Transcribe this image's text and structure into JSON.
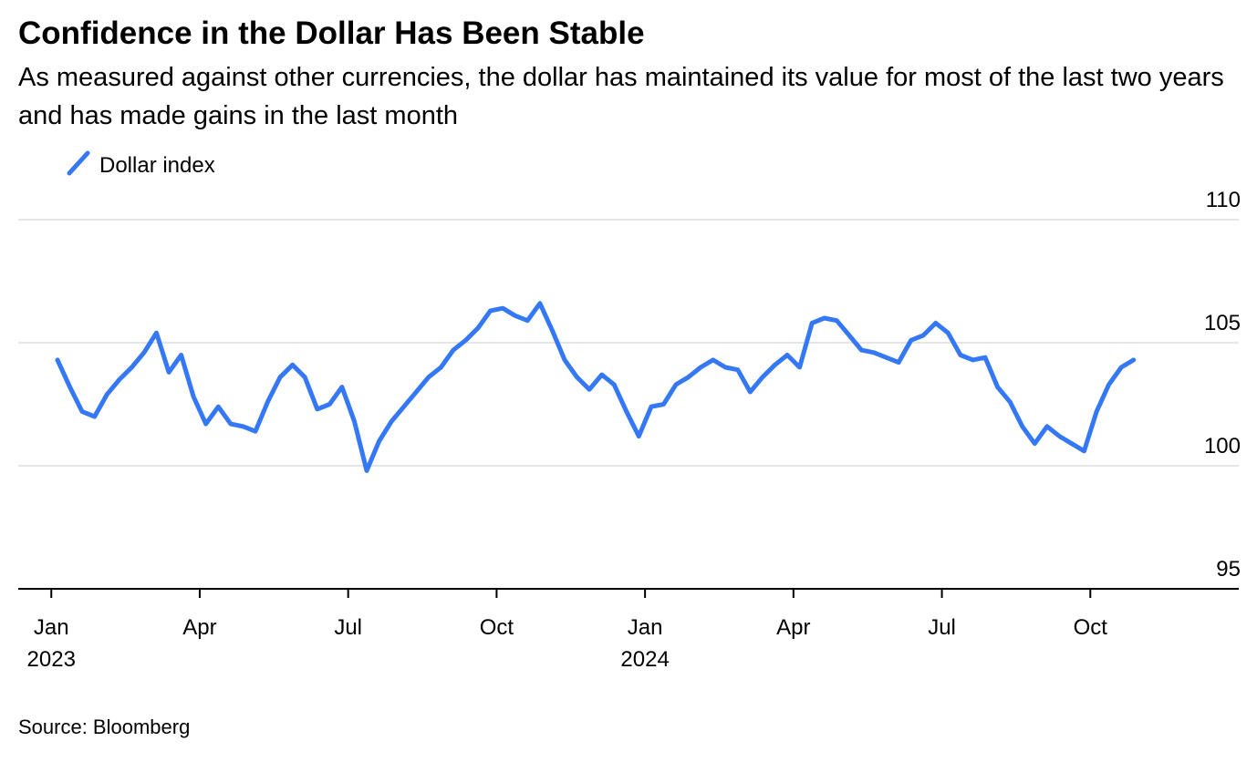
{
  "chart_data": {
    "type": "line",
    "title": "Confidence in the Dollar Has Been Stable",
    "subtitle": "As measured against other currencies, the dollar has maintained its value for most of the last two years and has made gains in the last month",
    "source": "Source: Bloomberg",
    "x": [
      "2023-01",
      "2023-01",
      "2023-01",
      "2023-01",
      "2023-02",
      "2023-02",
      "2023-02",
      "2023-02",
      "2023-03",
      "2023-03",
      "2023-03",
      "2023-03",
      "2023-04",
      "2023-04",
      "2023-04",
      "2023-04",
      "2023-05",
      "2023-05",
      "2023-05",
      "2023-05",
      "2023-06",
      "2023-06",
      "2023-06",
      "2023-06",
      "2023-07",
      "2023-07",
      "2023-07",
      "2023-07",
      "2023-08",
      "2023-08",
      "2023-08",
      "2023-08",
      "2023-09",
      "2023-09",
      "2023-09",
      "2023-09",
      "2023-10",
      "2023-10",
      "2023-10",
      "2023-10",
      "2023-11",
      "2023-11",
      "2023-11",
      "2023-11",
      "2023-12",
      "2023-12",
      "2023-12",
      "2023-12",
      "2024-01",
      "2024-01",
      "2024-01",
      "2024-01",
      "2024-02",
      "2024-02",
      "2024-02",
      "2024-02",
      "2024-03",
      "2024-03",
      "2024-03",
      "2024-03",
      "2024-04",
      "2024-04",
      "2024-04",
      "2024-04",
      "2024-05",
      "2024-05",
      "2024-05",
      "2024-05",
      "2024-06",
      "2024-06",
      "2024-06",
      "2024-06",
      "2024-07",
      "2024-07",
      "2024-07",
      "2024-07",
      "2024-08",
      "2024-08",
      "2024-08",
      "2024-08",
      "2024-09",
      "2024-09",
      "2024-09",
      "2024-09",
      "2024-10",
      "2024-10",
      "2024-10",
      "2024-10"
    ],
    "series": [
      {
        "name": "Dollar index",
        "color": "#3478f6",
        "values": [
          104.3,
          103.2,
          102.2,
          102.0,
          102.9,
          103.5,
          104.0,
          104.6,
          105.4,
          103.8,
          104.5,
          102.8,
          101.7,
          102.4,
          101.7,
          101.6,
          101.4,
          102.6,
          103.6,
          104.1,
          103.6,
          102.3,
          102.5,
          103.2,
          101.8,
          99.8,
          101.0,
          101.8,
          102.4,
          103.0,
          103.6,
          104.0,
          104.7,
          105.1,
          105.6,
          106.3,
          106.4,
          106.1,
          105.9,
          106.6,
          105.5,
          104.3,
          103.6,
          103.1,
          103.7,
          103.3,
          102.2,
          101.2,
          102.4,
          102.5,
          103.3,
          103.6,
          104.0,
          104.3,
          104.0,
          103.9,
          103.0,
          103.6,
          104.1,
          104.5,
          104.0,
          105.8,
          106.0,
          105.9,
          105.3,
          104.7,
          104.6,
          104.4,
          104.2,
          105.1,
          105.3,
          105.8,
          105.4,
          104.5,
          104.3,
          104.4,
          103.2,
          102.6,
          101.6,
          100.9,
          101.6,
          101.2,
          100.9,
          100.6,
          102.2,
          103.3,
          104.0,
          104.3
        ]
      }
    ],
    "xlim": [
      "2022-12",
      "2025-01"
    ],
    "xticks": [
      {
        "value": "2023-01",
        "label": "Jan",
        "year": "2023"
      },
      {
        "value": "2023-04",
        "label": "Apr"
      },
      {
        "value": "2023-07",
        "label": "Jul"
      },
      {
        "value": "2023-10",
        "label": "Oct"
      },
      {
        "value": "2024-01",
        "label": "Jan",
        "year": "2024"
      },
      {
        "value": "2024-04",
        "label": "Apr"
      },
      {
        "value": "2024-07",
        "label": "Jul"
      },
      {
        "value": "2024-10",
        "label": "Oct"
      }
    ],
    "ylim": [
      95,
      110
    ],
    "yticks": [
      95,
      100,
      105,
      110
    ],
    "grid": true
  }
}
